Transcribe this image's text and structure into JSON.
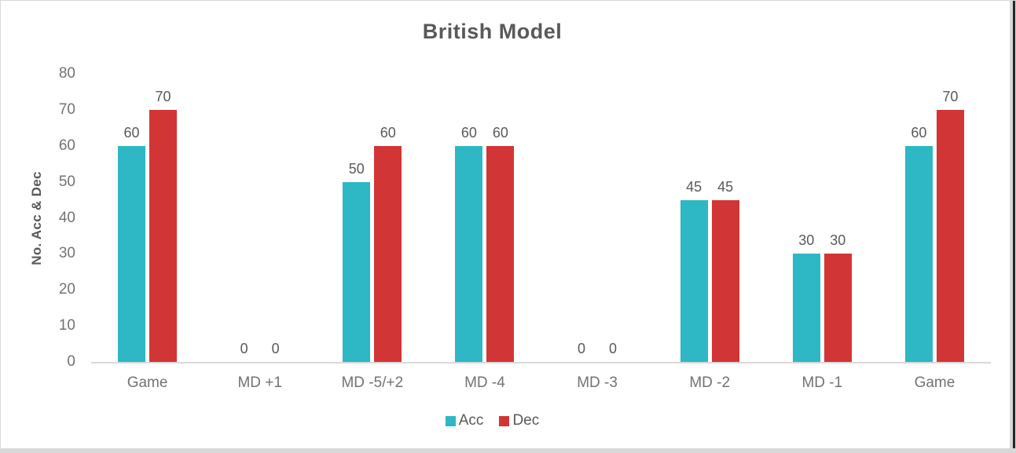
{
  "chart_data": {
    "type": "bar",
    "title": "British Model",
    "xlabel": "",
    "ylabel": "No. Acc & Dec",
    "categories": [
      "Game",
      "MD +1",
      "MD -5/+2",
      "MD -4",
      "MD -3",
      "MD -2",
      "MD -1",
      "Game"
    ],
    "series": [
      {
        "name": "Acc",
        "color": "#2EB7C4",
        "values": [
          60,
          0,
          50,
          60,
          0,
          45,
          30,
          60
        ]
      },
      {
        "name": "Dec",
        "color": "#D23535",
        "values": [
          70,
          0,
          60,
          60,
          0,
          45,
          30,
          70
        ]
      }
    ],
    "ylim": [
      0,
      80
    ],
    "yticks": [
      0,
      10,
      20,
      30,
      40,
      50,
      60,
      70,
      80
    ],
    "grid": false,
    "data_labels": true,
    "legend_position": "bottom"
  },
  "colors": {
    "title_text": "#595959",
    "tick_text": "#767171",
    "data_label_text": "#595959",
    "axis_line": "#D9D9D9",
    "card_border": "#D9D9D9",
    "edge_strip_gray": "#D8D8D8",
    "edge_strip_dark": "#262626",
    "background": "#FFFFFF"
  }
}
